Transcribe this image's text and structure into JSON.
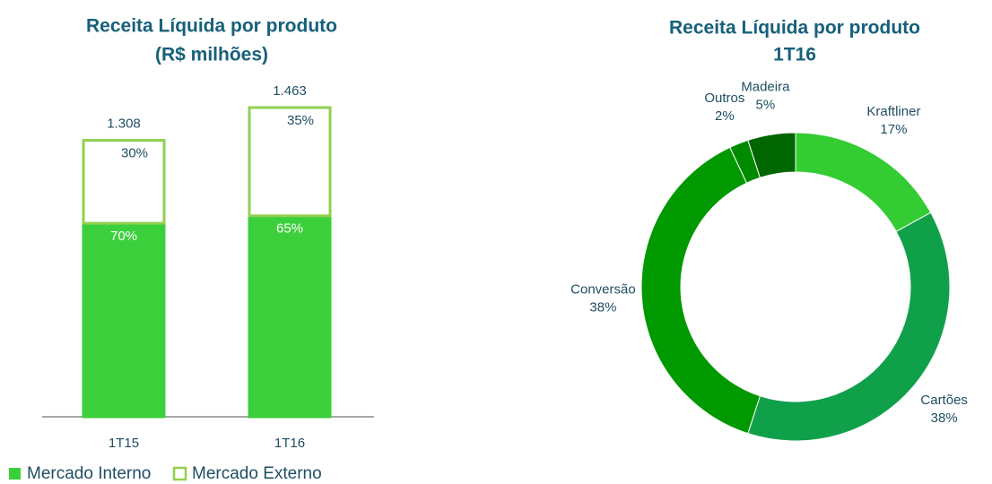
{
  "chart_data": [
    {
      "type": "bar",
      "title": "Receita Líquida por produto",
      "subtitle": "(R$ milhões)",
      "categories": [
        "1T15",
        "1T16"
      ],
      "series": [
        {
          "name": "Mercado Interno",
          "color": "#3ccf3c",
          "values": [
            70,
            65
          ],
          "value_labels": [
            "70%",
            "65%"
          ]
        },
        {
          "name": "Mercado Externo",
          "color": "#92d050",
          "values": [
            30,
            35
          ],
          "value_labels": [
            "30%",
            "35%"
          ]
        }
      ],
      "totals": [
        1308,
        1463
      ],
      "total_labels": [
        "1.308",
        "1.463"
      ]
    },
    {
      "type": "pie",
      "title": "Receita Líquida por produto",
      "subtitle": "1T16",
      "categories": [
        "Kraftliner",
        "Cartões",
        "Conversão",
        "Outros",
        "Madeira"
      ],
      "values": [
        17,
        38,
        38,
        2,
        5
      ],
      "value_labels": [
        "17%",
        "38%",
        "38%",
        "2%",
        "5%"
      ],
      "colors": [
        "#33cc33",
        "#11a04a",
        "#009900",
        "#008a00",
        "#006600"
      ]
    }
  ]
}
